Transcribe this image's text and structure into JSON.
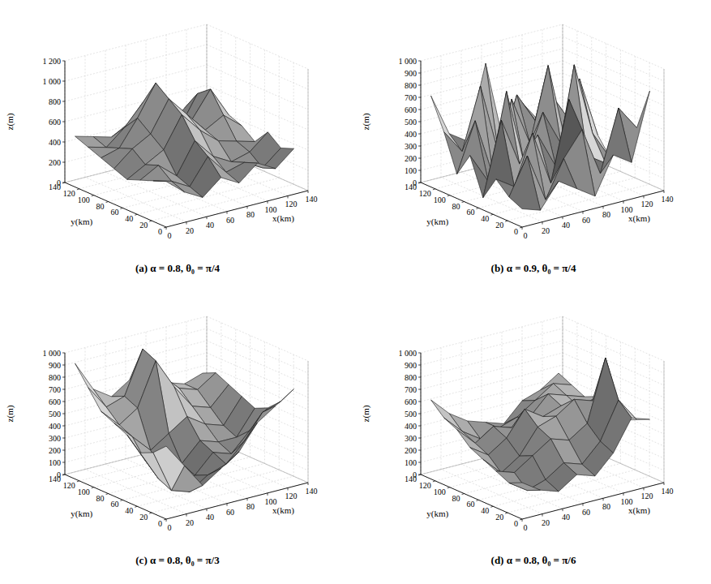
{
  "chart_data": [
    {
      "type": "surface",
      "title": "(a) α = 0.8, θ₀ = π/4",
      "x_label": "x(km)",
      "y_label": "y(km)",
      "z_label": "z(m)",
      "color": "#1a1a1a",
      "grid": true,
      "xlim": [
        0,
        140
      ],
      "ylim": [
        0,
        140
      ],
      "zlim": [
        0,
        1200
      ],
      "xticks": [
        0,
        20,
        40,
        60,
        80,
        100,
        120,
        140
      ],
      "yticks": [
        0,
        20,
        40,
        60,
        80,
        100,
        120,
        140
      ],
      "zticks": [
        0,
        200,
        400,
        600,
        800,
        {
          "value": 1000,
          "label": "1 000"
        },
        {
          "value": 1200,
          "label": "1 200"
        }
      ],
      "x": [
        0,
        18,
        36,
        54,
        72,
        90,
        108,
        126
      ],
      "y": [
        0,
        18,
        36,
        54,
        72,
        90,
        108,
        126
      ],
      "z": [
        [
          450,
          300,
          200,
          350,
          250,
          400,
          300,
          450
        ],
        [
          400,
          350,
          250,
          500,
          300,
          350,
          250,
          400
        ],
        [
          350,
          450,
          300,
          600,
          400,
          300,
          350,
          500
        ],
        [
          300,
          400,
          500,
          800,
          600,
          450,
          400,
          350
        ],
        [
          350,
          500,
          600,
          900,
          700,
          500,
          600,
          450
        ],
        [
          400,
          450,
          700,
          1000,
          650,
          550,
          800,
          500
        ],
        [
          450,
          400,
          550,
          750,
          600,
          400,
          700,
          450
        ],
        [
          500,
          450,
          400,
          500,
          450,
          350,
          500,
          400
        ]
      ]
    },
    {
      "type": "surface",
      "title": "(b) α = 0.9, θ₀ = π/4",
      "x_label": "x(km)",
      "y_label": "y(km)",
      "z_label": "z(m)",
      "color": "#1a1a1a",
      "grid": true,
      "xlim": [
        0,
        140
      ],
      "ylim": [
        0,
        140
      ],
      "zlim": [
        0,
        1000
      ],
      "xticks": [
        0,
        20,
        40,
        60,
        80,
        100,
        120,
        140
      ],
      "yticks": [
        0,
        20,
        40,
        60,
        80,
        100,
        120,
        140
      ],
      "zticks": [
        0,
        100,
        200,
        300,
        400,
        500,
        600,
        700,
        800,
        900,
        {
          "value": 1000,
          "label": "1 000"
        }
      ],
      "x": [
        0,
        18,
        36,
        54,
        72,
        90,
        108,
        126
      ],
      "y": [
        0,
        18,
        36,
        54,
        72,
        90,
        108,
        126
      ],
      "z": [
        [
          150,
          100,
          300,
          200,
          100,
          400,
          300,
          850
        ],
        [
          200,
          500,
          100,
          400,
          600,
          200,
          700,
          500
        ],
        [
          300,
          200,
          600,
          150,
          800,
          300,
          200,
          400
        ],
        [
          100,
          700,
          300,
          500,
          200,
          1000,
          400,
          150
        ],
        [
          400,
          150,
          850,
          200,
          600,
          300,
          800,
          300
        ],
        [
          200,
          600,
          100,
          700,
          300,
          900,
          200,
          500
        ],
        [
          500,
          300,
          800,
          200,
          650,
          400,
          550,
          300
        ],
        [
          750,
          400,
          300,
          900,
          200,
          500,
          300,
          250
        ]
      ]
    },
    {
      "type": "surface",
      "title": "(c) α = 0.8, θ₀ = π/3",
      "x_label": "x(km)",
      "y_label": "y(km)",
      "z_label": "z(m)",
      "color": "#1a1a1a",
      "grid": true,
      "xlim": [
        0,
        140
      ],
      "ylim": [
        0,
        140
      ],
      "zlim": [
        0,
        1000
      ],
      "xticks": [
        0,
        20,
        40,
        60,
        80,
        100,
        120,
        140
      ],
      "yticks": [
        0,
        20,
        40,
        60,
        80,
        100,
        120,
        140
      ],
      "zticks": [
        0,
        100,
        200,
        300,
        400,
        500,
        600,
        700,
        800,
        900,
        {
          "value": 1000,
          "label": "1 000"
        }
      ],
      "x": [
        0,
        18,
        36,
        54,
        72,
        90,
        108,
        126
      ],
      "y": [
        0,
        18,
        36,
        54,
        72,
        90,
        108,
        126
      ],
      "z": [
        [
          600,
          400,
          200,
          300,
          400,
          600,
          700,
          800
        ],
        [
          500,
          150,
          100,
          200,
          250,
          400,
          600,
          650
        ],
        [
          450,
          200,
          100,
          150,
          300,
          250,
          400,
          550
        ],
        [
          550,
          300,
          150,
          200,
          350,
          300,
          300,
          500
        ],
        [
          600,
          450,
          300,
          400,
          500,
          400,
          350,
          550
        ],
        [
          650,
          500,
          600,
          950,
          700,
          500,
          450,
          600
        ],
        [
          800,
          600,
          650,
          1000,
          750,
          600,
          550,
          650
        ],
        [
          950,
          700,
          600,
          700,
          650,
          600,
          550,
          600
        ]
      ]
    },
    {
      "type": "surface",
      "title": "(d) α = 0.8, θ₀ = π/6",
      "x_label": "x(km)",
      "y_label": "y(km)",
      "z_label": "z(m)",
      "color": "#1a1a1a",
      "grid": true,
      "xlim": [
        0,
        140
      ],
      "ylim": [
        0,
        140
      ],
      "zlim": [
        0,
        1000
      ],
      "xticks": [
        0,
        20,
        40,
        60,
        80,
        100,
        120,
        140
      ],
      "yticks": [
        0,
        20,
        40,
        60,
        80,
        100,
        120,
        140
      ],
      "zticks": [
        0,
        100,
        200,
        300,
        400,
        500,
        600,
        700,
        800,
        900,
        {
          "value": 1000,
          "label": "1 000"
        }
      ],
      "x": [
        0,
        18,
        36,
        54,
        72,
        90,
        108,
        126
      ],
      "y": [
        0,
        18,
        36,
        54,
        72,
        90,
        108,
        126
      ],
      "z": [
        [
          300,
          200,
          150,
          250,
          200,
          350,
          600,
          550
        ],
        [
          250,
          150,
          200,
          300,
          250,
          400,
          700,
          500
        ],
        [
          300,
          250,
          350,
          450,
          400,
          500,
          1000,
          450
        ],
        [
          350,
          200,
          300,
          500,
          550,
          650,
          600,
          500
        ],
        [
          400,
          300,
          400,
          600,
          500,
          550,
          500,
          550
        ],
        [
          500,
          350,
          450,
          400,
          450,
          600,
          550,
          500
        ],
        [
          550,
          400,
          300,
          350,
          400,
          500,
          600,
          550
        ],
        [
          650,
          500,
          400,
          350,
          300,
          450,
          500,
          600
        ]
      ]
    }
  ]
}
